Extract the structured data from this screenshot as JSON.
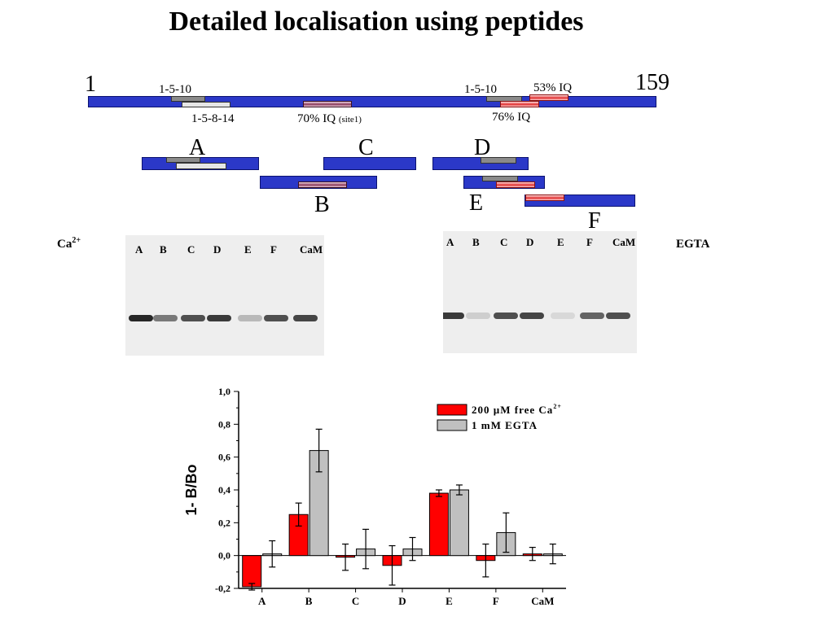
{
  "title": "Detailed localisation using peptides",
  "map": {
    "start_label": "1",
    "end_label": "159",
    "motif_left_top": "1-5-10",
    "motif_left_bottom": "1-5-8-14",
    "iq_site1_label": "70% IQ",
    "iq_site1_suffix": "(site1)",
    "motif_right_top": "1-5-10",
    "iq_53_label": "53% IQ",
    "iq_76_label": "76% IQ"
  },
  "peptides": [
    "A",
    "B",
    "C",
    "D",
    "E",
    "F"
  ],
  "gels": {
    "ca_label": "Ca",
    "ca_sup": "2+",
    "egta_label": "EGTA",
    "lanes": [
      "A",
      "B",
      "C",
      "D",
      "E",
      "F",
      "CaM"
    ],
    "ca_band_intensity": [
      0.95,
      0.55,
      0.75,
      0.85,
      0.25,
      0.75,
      0.8
    ],
    "egta_band_intensity": [
      0.85,
      0.15,
      0.75,
      0.8,
      0.1,
      0.65,
      0.75
    ]
  },
  "chart_data": {
    "type": "bar",
    "categories": [
      "A",
      "B",
      "C",
      "D",
      "E",
      "F",
      "CaM"
    ],
    "ylabel": "1- B/Bo",
    "ylim": [
      -0.2,
      1.0
    ],
    "yticks": [
      "-0,2",
      "0,0",
      "0,2",
      "0,4",
      "0,6",
      "0,8",
      "1,0"
    ],
    "series": [
      {
        "name": "200 µM free Ca",
        "name_sup": "2+",
        "color": "#ff0000",
        "values": [
          -0.19,
          0.25,
          -0.01,
          -0.06,
          0.38,
          -0.03,
          0.01
        ],
        "errors": [
          0.02,
          0.07,
          0.08,
          0.12,
          0.02,
          0.1,
          0.04
        ]
      },
      {
        "name": "1 mM EGTA",
        "color": "#c0c0c0",
        "values": [
          0.01,
          0.64,
          0.04,
          0.04,
          0.4,
          0.14,
          0.01
        ],
        "errors": [
          0.08,
          0.13,
          0.12,
          0.07,
          0.03,
          0.12,
          0.06
        ]
      }
    ]
  }
}
